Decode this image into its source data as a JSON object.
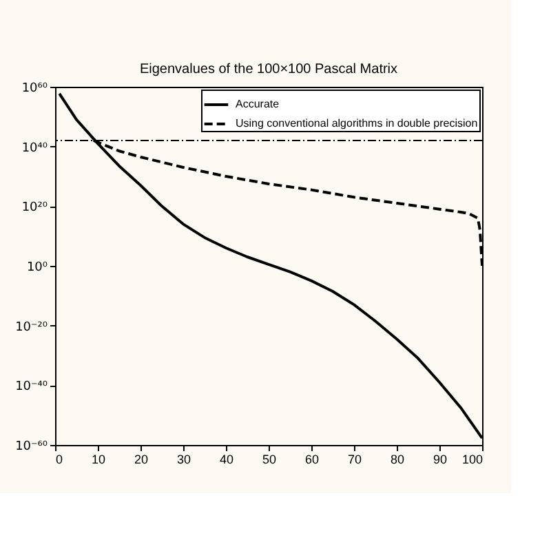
{
  "chart_data": {
    "type": "line",
    "title": "Eigenvalues of the 100×100 Pascal Matrix",
    "series": [
      {
        "name": "Accurate",
        "color": "#000000",
        "line_style": "solid",
        "x": [
          1,
          5,
          10,
          15,
          20,
          25,
          30,
          35,
          40,
          45,
          50,
          55,
          60,
          65,
          70,
          75,
          80,
          85,
          90,
          95,
          100
        ],
        "values": [
          5e+57,
          1e+49,
          1e+41,
          3e+33,
          1e+27,
          1e+20,
          100000000000000.0,
          3000000000.0,
          1000000.0,
          1000.0,
          3,
          0.01,
          1e-05,
          3e-09,
          1e-13,
          3e-19,
          3e-25,
          1e-31,
          1e-39,
          3e-48,
          2e-58
        ]
      },
      {
        "name": "Using conventional algorithms in double precision",
        "color": "#000000",
        "line_style": "dashed",
        "x": [
          9,
          15,
          20,
          30,
          40,
          50,
          60,
          70,
          80,
          90,
          95,
          97,
          99,
          99.5,
          100
        ],
        "values": [
          1e+42,
          3e+38,
          3e+36,
          1e+33,
          1e+30,
          3e+27,
          3e+25,
          1e+23,
          1e+21,
          1e+19,
          1e+18,
          3e+17,
          1e+16,
          1000000000000.0,
          1
        ]
      }
    ],
    "ref_lines": [
      {
        "axis": "y",
        "value": 1e+42,
        "color": "#000000",
        "line_style": "dotted"
      }
    ],
    "log": "y",
    "xlim": [
      0,
      100
    ],
    "xticks": [
      0,
      10,
      20,
      30,
      40,
      50,
      60,
      70,
      80,
      90,
      100
    ],
    "ylim": [
      1e-60,
      1e+60
    ],
    "yticks": [
      {
        "value": 1e-60,
        "label": "10⁻⁶⁰"
      },
      {
        "value": 1e-40,
        "label": "10⁻⁴⁰"
      },
      {
        "value": 1e-20,
        "label": "10⁻²⁰"
      },
      {
        "value": 1,
        "label": "10⁰"
      },
      {
        "value": 1e+20,
        "label": "10²⁰"
      },
      {
        "value": 1e+40,
        "label": "10⁴⁰"
      },
      {
        "value": 1e+60,
        "label": "10⁶⁰"
      }
    ],
    "grid": false,
    "legend": "top right",
    "marker": "none"
  }
}
